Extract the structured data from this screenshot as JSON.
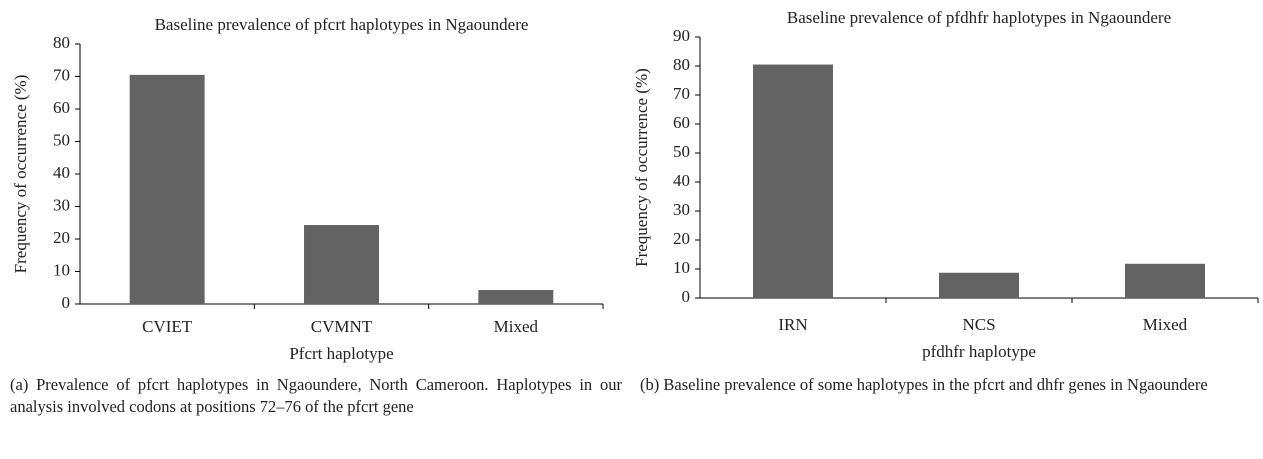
{
  "chart_data": [
    {
      "type": "bar",
      "title": "Baseline prevalence of pfcrt haplotypes in Ngaoundere",
      "x_label": "Pfcrt haplotype",
      "y_label": "Frequency of occurrence (%)",
      "categories": [
        "CVIET",
        "CVMNT",
        "Mixed"
      ],
      "values": [
        70.5,
        24.3,
        4.3
      ],
      "color": "#636363",
      "ylim": [
        0,
        80
      ],
      "yticks": [
        0,
        10,
        20,
        30,
        40,
        50,
        60,
        70,
        80
      ],
      "grid": false
    },
    {
      "type": "bar",
      "title": "Baseline prevalence of pfdhfr haplotypes in Ngaoundere",
      "x_label": "pfdhfr haplotype",
      "y_label": "Frequency of occurrence (%)",
      "categories": [
        "IRN",
        "NCS",
        "Mixed"
      ],
      "values": [
        80.5,
        8.7,
        11.8
      ],
      "color": "#636363",
      "ylim": [
        0,
        90
      ],
      "yticks": [
        0,
        10,
        20,
        30,
        40,
        50,
        60,
        70,
        80,
        90
      ],
      "grid": false
    }
  ],
  "captions": [
    "(a) Prevalence of pfcrt haplotypes in Ngaoundere, North Cameroon. Haplotypes in our analysis involved codons at positions 72–76 of the pfcrt gene",
    "(b) Baseline prevalence of some haplotypes in the pfcrt and dhfr genes in Ngaoundere"
  ]
}
